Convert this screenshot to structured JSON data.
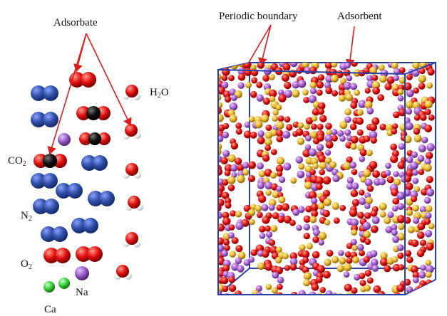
{
  "labels": {
    "adsorbate": "Adsorbate",
    "periodic_boundary": "Periodic boundary",
    "adsorbent": "Adsorbent",
    "co2_base": "CO",
    "co2_sub": "2",
    "h2o_pre": "H",
    "h2o_sub": "2",
    "h2o_post": "O",
    "n2_base": "N",
    "n2_sub": "2",
    "o2_base": "O",
    "o2_sub": "2",
    "na": "Na",
    "ca": "Ca"
  },
  "colors": {
    "nitrogen": "#2f4fa8",
    "oxygen": "#e01010",
    "carbon": "#111111",
    "hydrogen": "#f2f2f2",
    "sodium": "#9a5cc6",
    "calcium": "#3ccf3c",
    "silicon_aluminum": "#e8b830",
    "boundary": "#2a3ea8",
    "pointer": "#d81e1e"
  }
}
